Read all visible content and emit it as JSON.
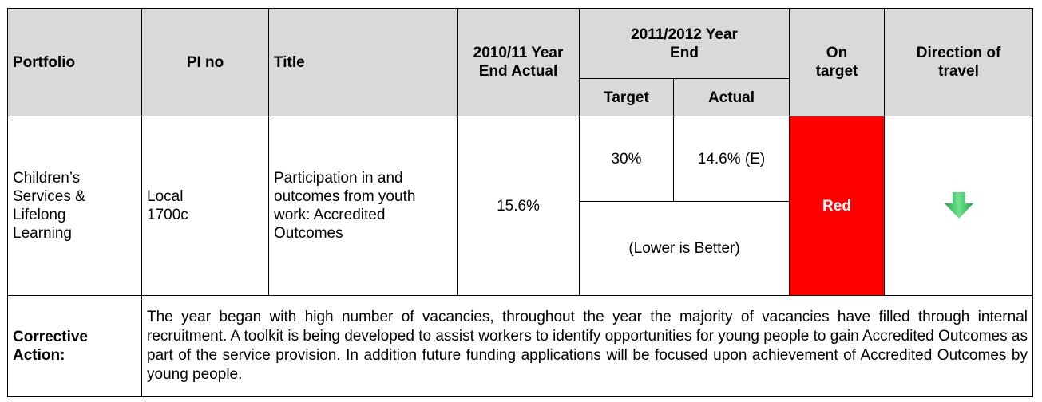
{
  "header": {
    "portfolio": "Portfolio",
    "pi_no": "PI no",
    "title": "Title",
    "actual_2010": "2010/11 Year End Actual",
    "group_2011": "2011/2012 Year End",
    "target": "Target",
    "actual": "Actual",
    "on_target": "On target",
    "direction": "Direction of travel"
  },
  "row": {
    "portfolio": "Children’s Services & Lifelong Learning",
    "pi_no": "Local 1700c",
    "title": "Participation in and outcomes from youth work: Accredited Outcomes",
    "actual_2010": "15.6%",
    "target": "30%",
    "actual": "14.6% (E)",
    "note": "(Lower is Better)",
    "status": "Red"
  },
  "corrective": {
    "label": "Corrective Action:",
    "text": "The year began with high number of vacancies, throughout the year the majority of vacancies have filled through internal recruitment. A toolkit is being developed to assist workers to identify opportunities for young people to gain Accredited Outcomes as part of the service provision. In addition future funding applications will be focused upon achievement of Accredited Outcomes by young people."
  }
}
